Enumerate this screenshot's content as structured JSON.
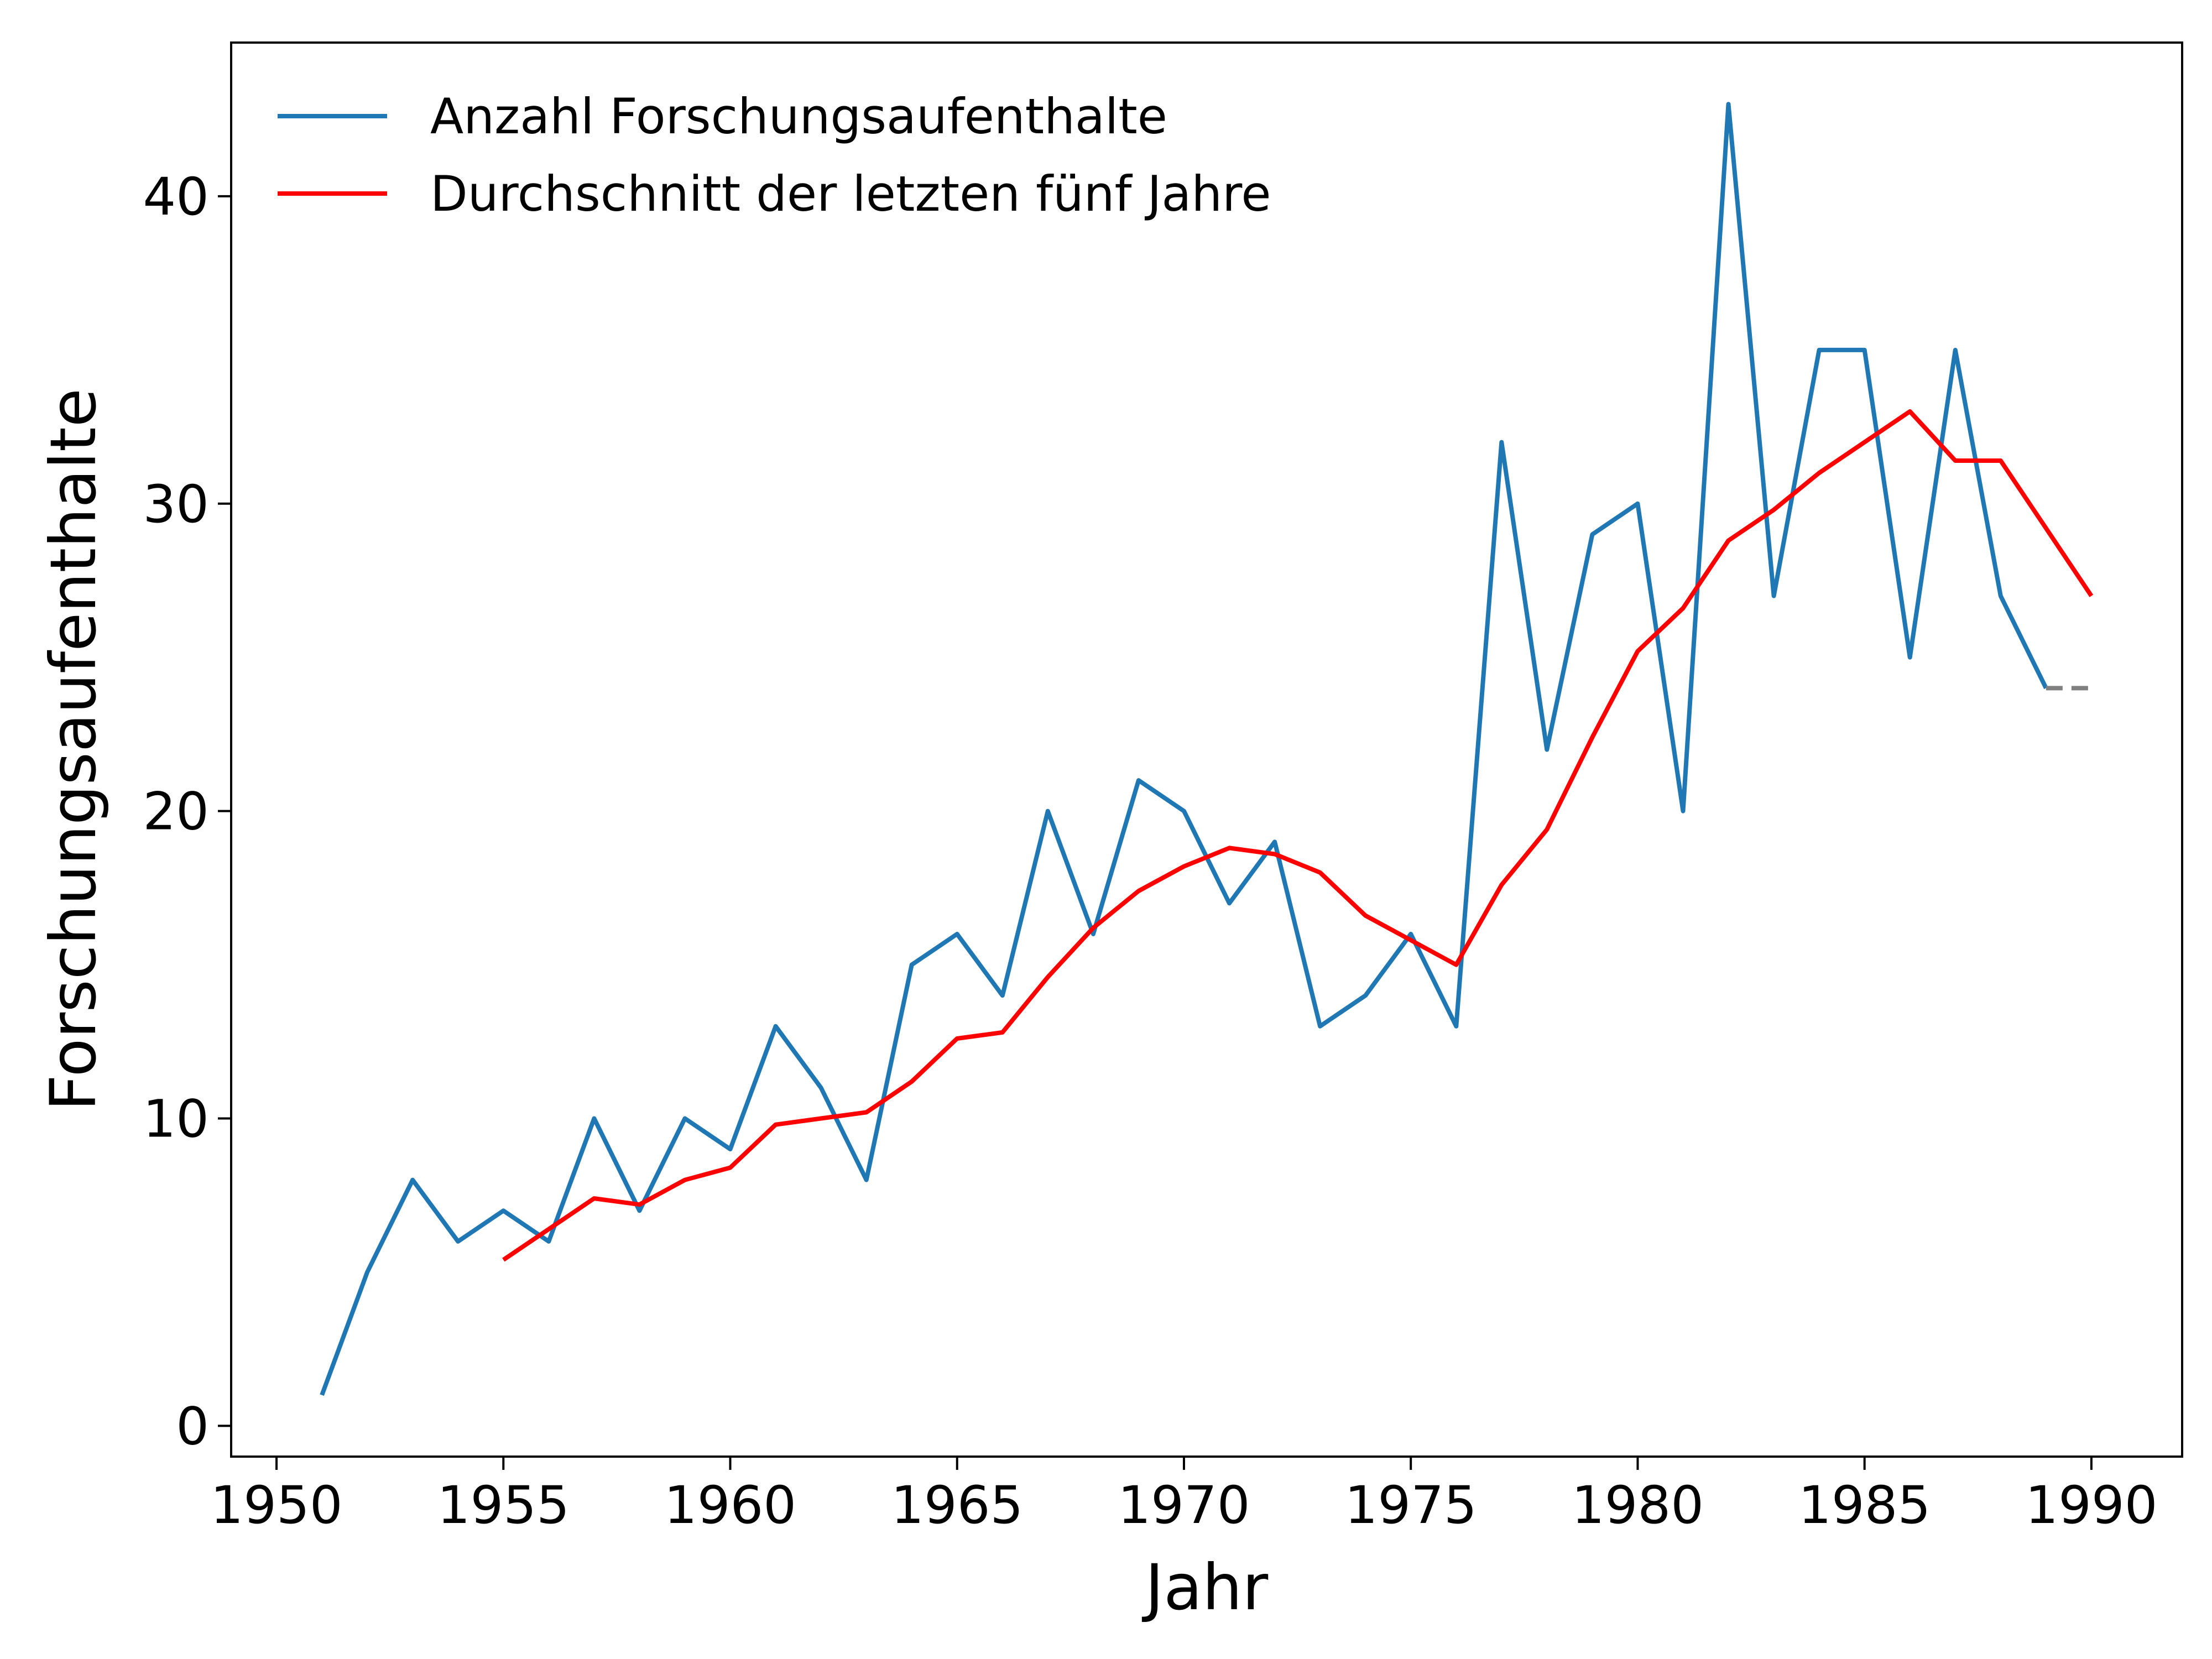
{
  "chart_data": {
    "type": "line",
    "title": "",
    "xlabel": "Jahr",
    "ylabel": "Forschungsaufenthalte",
    "xlim": [
      1949,
      1992
    ],
    "ylim": [
      -1,
      45
    ],
    "xticks": [
      1950,
      1955,
      1960,
      1965,
      1970,
      1975,
      1980,
      1985,
      1990
    ],
    "yticks": [
      0,
      10,
      20,
      30,
      40
    ],
    "grid": false,
    "legend_position": "top-left",
    "colors": {
      "series1": "#1f77b4",
      "series2": "#ff0000",
      "extension": "#808080"
    },
    "series": [
      {
        "name": "Anzahl Forschungsaufenthalte",
        "color": "#1f77b4",
        "x": [
          1951,
          1952,
          1953,
          1954,
          1955,
          1956,
          1957,
          1958,
          1959,
          1960,
          1961,
          1962,
          1963,
          1964,
          1965,
          1966,
          1967,
          1968,
          1969,
          1970,
          1971,
          1972,
          1973,
          1974,
          1975,
          1976,
          1977,
          1978,
          1979,
          1980,
          1981,
          1982,
          1983,
          1984,
          1985,
          1986,
          1987,
          1988,
          1989
        ],
        "values": [
          1,
          5,
          8,
          6,
          7,
          6,
          10,
          7,
          10,
          9,
          13,
          11,
          8,
          15,
          16,
          14,
          20,
          16,
          21,
          20,
          17,
          19,
          13,
          14,
          16,
          13,
          32,
          22,
          29,
          30,
          20,
          43,
          27,
          35,
          35,
          25,
          35,
          27,
          24
        ]
      },
      {
        "name": "Durchschnitt der letzten fünf Jahre",
        "color": "#ff0000",
        "x": [
          1955,
          1956,
          1957,
          1958,
          1959,
          1960,
          1961,
          1962,
          1963,
          1964,
          1965,
          1966,
          1967,
          1968,
          1969,
          1970,
          1971,
          1972,
          1973,
          1974,
          1975,
          1976,
          1977,
          1978,
          1979,
          1980,
          1981,
          1982,
          1983,
          1984,
          1985,
          1986,
          1987,
          1988,
          1989,
          1990
        ],
        "values": [
          5.4,
          6.4,
          7.4,
          7.2,
          8.0,
          8.4,
          9.8,
          10.0,
          10.2,
          11.2,
          12.6,
          12.8,
          14.6,
          16.2,
          17.4,
          18.2,
          18.8,
          18.6,
          18.0,
          16.6,
          15.8,
          15.0,
          17.6,
          19.4,
          22.4,
          25.2,
          26.6,
          28.8,
          29.8,
          31.0,
          32.0,
          33.0,
          31.4,
          31.4,
          29.2,
          27.0
        ]
      }
    ],
    "extension": {
      "style": "dashed",
      "color": "#808080",
      "x": [
        1989,
        1990
      ],
      "values": [
        24,
        24
      ]
    }
  }
}
